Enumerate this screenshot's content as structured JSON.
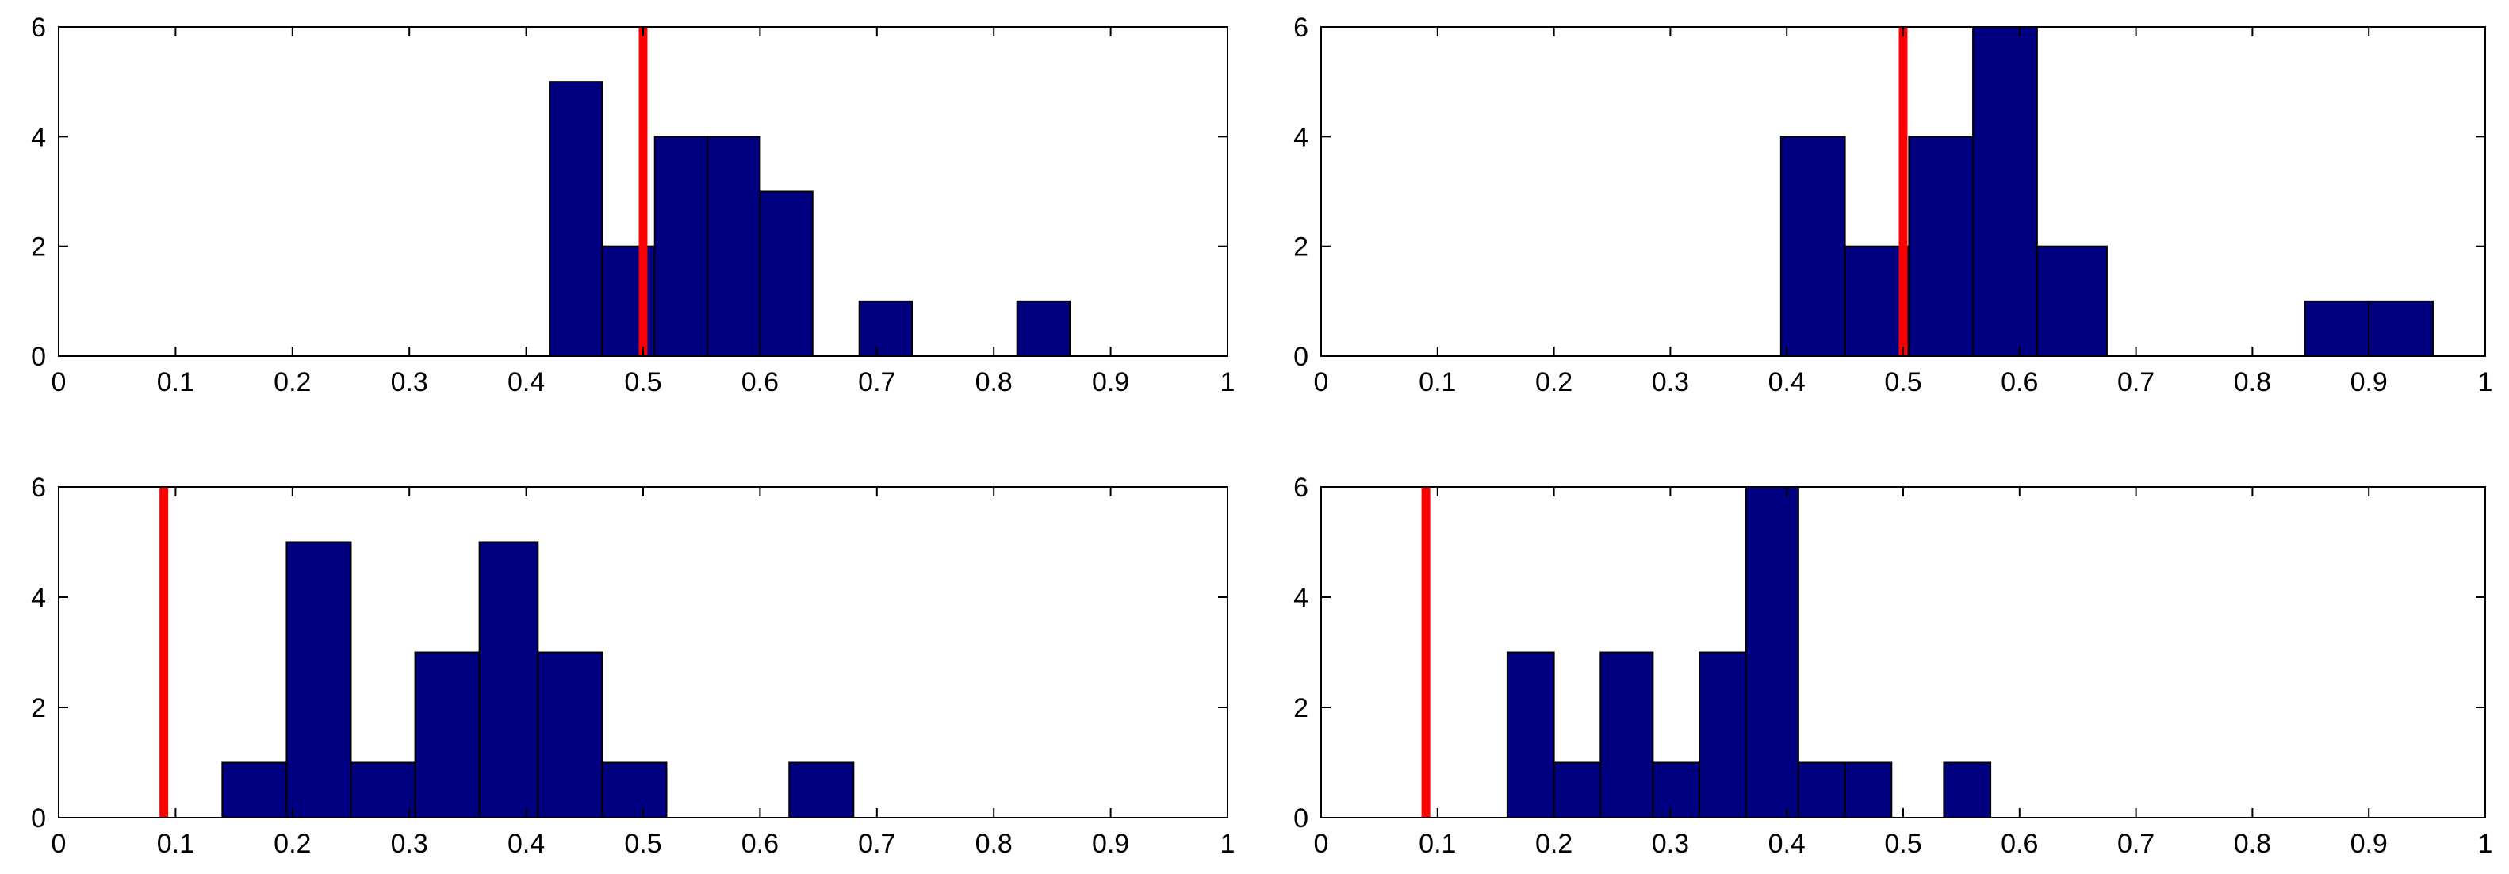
{
  "colors": {
    "bar_fill": "#000080",
    "bar_edge": "#000000",
    "marker_line": "#ff0000",
    "axes_frame": "#000000",
    "background": "#ffffff"
  },
  "chart_data": [
    {
      "type": "bar",
      "panel": "top-left",
      "title": "",
      "xlabel": "",
      "ylabel": "",
      "xlim": [
        0,
        1
      ],
      "ylim": [
        0,
        6
      ],
      "xticks": [
        "0",
        "0.1",
        "0.2",
        "0.3",
        "0.4",
        "0.5",
        "0.6",
        "0.7",
        "0.8",
        "0.9",
        "1"
      ],
      "yticks": [
        "0",
        "2",
        "4",
        "6"
      ],
      "grid": false,
      "bins": [
        {
          "x0": 0.42,
          "x1": 0.465,
          "count": 5
        },
        {
          "x0": 0.465,
          "x1": 0.51,
          "count": 2
        },
        {
          "x0": 0.51,
          "x1": 0.555,
          "count": 4
        },
        {
          "x0": 0.555,
          "x1": 0.6,
          "count": 4
        },
        {
          "x0": 0.6,
          "x1": 0.645,
          "count": 3
        },
        {
          "x0": 0.685,
          "x1": 0.73,
          "count": 1
        },
        {
          "x0": 0.82,
          "x1": 0.865,
          "count": 1
        }
      ],
      "marker_line_x": 0.5
    },
    {
      "type": "bar",
      "panel": "top-right",
      "title": "",
      "xlabel": "",
      "ylabel": "",
      "xlim": [
        0,
        1
      ],
      "ylim": [
        0,
        6
      ],
      "xticks": [
        "0",
        "0.1",
        "0.2",
        "0.3",
        "0.4",
        "0.5",
        "0.6",
        "0.7",
        "0.8",
        "0.9",
        "1"
      ],
      "yticks": [
        "0",
        "2",
        "4",
        "6"
      ],
      "grid": false,
      "bins": [
        {
          "x0": 0.395,
          "x1": 0.45,
          "count": 4
        },
        {
          "x0": 0.45,
          "x1": 0.505,
          "count": 2
        },
        {
          "x0": 0.505,
          "x1": 0.56,
          "count": 4
        },
        {
          "x0": 0.56,
          "x1": 0.615,
          "count": 6
        },
        {
          "x0": 0.615,
          "x1": 0.675,
          "count": 2
        },
        {
          "x0": 0.845,
          "x1": 0.9,
          "count": 1
        },
        {
          "x0": 0.9,
          "x1": 0.955,
          "count": 1
        }
      ],
      "marker_line_x": 0.5
    },
    {
      "type": "bar",
      "panel": "bottom-left",
      "title": "",
      "xlabel": "",
      "ylabel": "",
      "xlim": [
        0,
        1
      ],
      "ylim": [
        0,
        6
      ],
      "xticks": [
        "0",
        "0.1",
        "0.2",
        "0.3",
        "0.4",
        "0.5",
        "0.6",
        "0.7",
        "0.8",
        "0.9",
        "1"
      ],
      "yticks": [
        "0",
        "2",
        "4",
        "6"
      ],
      "grid": false,
      "bins": [
        {
          "x0": 0.14,
          "x1": 0.195,
          "count": 1
        },
        {
          "x0": 0.195,
          "x1": 0.25,
          "count": 5
        },
        {
          "x0": 0.25,
          "x1": 0.305,
          "count": 1
        },
        {
          "x0": 0.305,
          "x1": 0.36,
          "count": 3
        },
        {
          "x0": 0.36,
          "x1": 0.41,
          "count": 5
        },
        {
          "x0": 0.41,
          "x1": 0.465,
          "count": 3
        },
        {
          "x0": 0.465,
          "x1": 0.52,
          "count": 1
        },
        {
          "x0": 0.625,
          "x1": 0.68,
          "count": 1
        }
      ],
      "marker_line_x": 0.09
    },
    {
      "type": "bar",
      "panel": "bottom-right",
      "title": "",
      "xlabel": "",
      "ylabel": "",
      "xlim": [
        0,
        1
      ],
      "ylim": [
        0,
        6
      ],
      "xticks": [
        "0",
        "0.1",
        "0.2",
        "0.3",
        "0.4",
        "0.5",
        "0.6",
        "0.7",
        "0.8",
        "0.9",
        "1"
      ],
      "yticks": [
        "0",
        "2",
        "4",
        "6"
      ],
      "grid": false,
      "bins": [
        {
          "x0": 0.16,
          "x1": 0.2,
          "count": 3
        },
        {
          "x0": 0.2,
          "x1": 0.24,
          "count": 1
        },
        {
          "x0": 0.24,
          "x1": 0.285,
          "count": 3
        },
        {
          "x0": 0.285,
          "x1": 0.325,
          "count": 1
        },
        {
          "x0": 0.325,
          "x1": 0.365,
          "count": 3
        },
        {
          "x0": 0.365,
          "x1": 0.41,
          "count": 6
        },
        {
          "x0": 0.41,
          "x1": 0.45,
          "count": 1
        },
        {
          "x0": 0.45,
          "x1": 0.49,
          "count": 1
        },
        {
          "x0": 0.535,
          "x1": 0.575,
          "count": 1
        }
      ],
      "marker_line_x": 0.09
    }
  ]
}
